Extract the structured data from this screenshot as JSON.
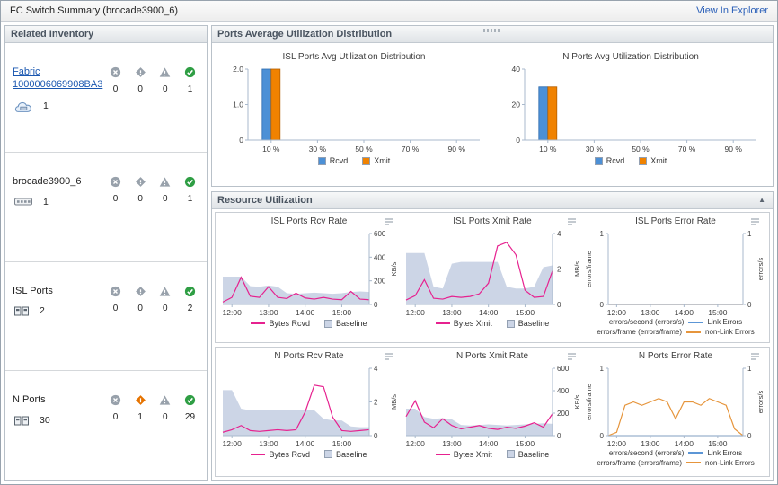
{
  "header": {
    "title": "FC Switch Summary (brocade3900_6)",
    "explorer_link": "View In Explorer"
  },
  "panels": {
    "ports": "Ports Average Utilization Distribution",
    "resource": "Resource Utilization"
  },
  "inventory": {
    "title": "Related Inventory",
    "rows": [
      {
        "label": "Fabric 1000006069908BA3",
        "count": "1",
        "statuses": [
          "0",
          "0",
          "0",
          "1"
        ]
      },
      {
        "label": "brocade3900_6",
        "count": "1",
        "statuses": [
          "0",
          "0",
          "0",
          "1"
        ]
      },
      {
        "label": "ISL Ports",
        "count": "2",
        "statuses": [
          "0",
          "0",
          "0",
          "2"
        ]
      },
      {
        "label": "N Ports",
        "count": "30",
        "statuses": [
          "0",
          "1",
          "0",
          "29"
        ]
      }
    ]
  },
  "chart_data": [
    {
      "type": "bar",
      "title": "ISL Ports Avg Utilization Distribution",
      "categories": [
        "10 %",
        "30 %",
        "50 %",
        "70 %",
        "90 %"
      ],
      "ylim": [
        0,
        2
      ],
      "yticks": [
        {
          "v": 0,
          "label": "0"
        },
        {
          "v": 1,
          "label": "1.0"
        },
        {
          "v": 2,
          "label": "2.0"
        }
      ],
      "series": [
        {
          "name": "Rcvd",
          "color": "#4c90d6",
          "border": "#2e6cae",
          "values": [
            2,
            0,
            0,
            0,
            0
          ]
        },
        {
          "name": "Xmit",
          "color": "#f08200",
          "border": "#b35f00",
          "values": [
            2,
            0,
            0,
            0,
            0
          ]
        }
      ],
      "legend": [
        {
          "label": "Rcvd",
          "swatch": "box",
          "color": "#4c90d6"
        },
        {
          "label": "Xmit",
          "swatch": "box",
          "color": "#f08200"
        }
      ]
    },
    {
      "type": "bar",
      "title": "N Ports Avg Utilization Distribution",
      "categories": [
        "10 %",
        "30 %",
        "50 %",
        "70 %",
        "90 %"
      ],
      "ylim": [
        0,
        40
      ],
      "yticks": [
        {
          "v": 0,
          "label": "0"
        },
        {
          "v": 20,
          "label": "20"
        },
        {
          "v": 40,
          "label": "40"
        }
      ],
      "series": [
        {
          "name": "Rcvd",
          "color": "#4c90d6",
          "border": "#2e6cae",
          "values": [
            30,
            0,
            0,
            0,
            0
          ]
        },
        {
          "name": "Xmit",
          "color": "#f08200",
          "border": "#b35f00",
          "values": [
            30,
            0,
            0,
            0,
            0
          ]
        }
      ],
      "legend": [
        {
          "label": "Rcvd",
          "swatch": "box",
          "color": "#4c90d6"
        },
        {
          "label": "Xmit",
          "swatch": "box",
          "color": "#f08200"
        }
      ]
    },
    {
      "type": "line",
      "title": "ISL Ports Rcv Rate",
      "x_ticks": [
        "12:00",
        "13:00",
        "14:00",
        "15:00"
      ],
      "y_axis": {
        "side": "right",
        "label": "KB/s",
        "min": 0,
        "max": 600,
        "ticks": [
          0,
          200,
          400,
          600
        ]
      },
      "series": [
        {
          "name": "Baseline",
          "kind": "area",
          "color": "#ccd5e6",
          "values": [
            235,
            235,
            235,
            155,
            150,
            160,
            150,
            95,
            90,
            95,
            100,
            95,
            90,
            95,
            105,
            110,
            105
          ]
        },
        {
          "name": "Bytes Rcvd",
          "kind": "line",
          "color": "#e6218f",
          "values": [
            20,
            60,
            230,
            70,
            60,
            150,
            60,
            50,
            95,
            55,
            45,
            60,
            45,
            40,
            110,
            45,
            40
          ]
        }
      ],
      "legend": [
        {
          "label": "Bytes Rcvd",
          "swatch": "line",
          "color": "#e6218f"
        },
        {
          "label": "Baseline",
          "swatch": "box",
          "color": "#ccd5e6"
        }
      ]
    },
    {
      "type": "line",
      "title": "ISL Ports Xmit Rate",
      "x_ticks": [
        "12:00",
        "13:00",
        "14:00",
        "15:00"
      ],
      "y_axis": {
        "side": "right",
        "label": "MB/s",
        "min": 0,
        "max": 4,
        "ticks": [
          0,
          2,
          4
        ]
      },
      "series": [
        {
          "name": "Baseline",
          "kind": "area",
          "color": "#ccd5e6",
          "values": [
            2.9,
            2.9,
            2.9,
            1.0,
            0.9,
            2.3,
            2.4,
            2.4,
            2.4,
            2.4,
            2.4,
            1.0,
            0.9,
            0.9,
            1.0,
            2.1,
            2.2
          ]
        },
        {
          "name": "Bytes Xmit",
          "kind": "line",
          "color": "#e6218f",
          "values": [
            0.25,
            0.5,
            1.4,
            0.35,
            0.3,
            0.45,
            0.4,
            0.45,
            0.6,
            1.2,
            3.3,
            3.5,
            2.8,
            0.8,
            0.4,
            0.45,
            1.9
          ]
        }
      ],
      "legend": [
        {
          "label": "Bytes Xmit",
          "swatch": "line",
          "color": "#e6218f"
        },
        {
          "label": "Baseline",
          "swatch": "box",
          "color": "#ccd5e6"
        }
      ]
    },
    {
      "type": "line",
      "title": "ISL Ports Error Rate",
      "x_ticks": [
        "12:00",
        "13:00",
        "14:00",
        "15:00"
      ],
      "y_left": {
        "label": "errors/frame",
        "min": 0,
        "max": 1,
        "ticks": [
          0,
          1
        ]
      },
      "y_right": {
        "label": "errors/s",
        "min": 0,
        "max": 1,
        "ticks": [
          0,
          1
        ]
      },
      "series": [
        {
          "name": "Link Errors",
          "kind": "line",
          "color": "#5c96d6",
          "values": [
            0,
            0,
            0,
            0,
            0,
            0,
            0,
            0,
            0,
            0,
            0,
            0,
            0,
            0,
            0,
            0,
            0
          ]
        },
        {
          "name": "non-Link Errors",
          "kind": "line",
          "color": "#e6953c",
          "values": [
            0,
            0,
            0,
            0,
            0,
            0,
            0,
            0,
            0,
            0,
            0,
            0,
            0,
            0,
            0,
            0,
            0
          ]
        }
      ],
      "legend2": [
        {
          "text": "errors/second (errors/s)",
          "color": "#5c96d6",
          "label": "Link Errors"
        },
        {
          "text": "errors/frame (errors/frame)",
          "color": "#e6953c",
          "label": "non-Link Errors"
        }
      ]
    },
    {
      "type": "line",
      "title": "N Ports Rcv Rate",
      "x_ticks": [
        "12:00",
        "13:00",
        "14:00",
        "15:00"
      ],
      "y_axis": {
        "side": "right",
        "label": "MB/s",
        "min": 0,
        "max": 4,
        "ticks": [
          0,
          2,
          4
        ]
      },
      "series": [
        {
          "name": "Baseline",
          "kind": "area",
          "color": "#ccd5e6",
          "values": [
            2.7,
            2.7,
            1.6,
            1.5,
            1.5,
            1.55,
            1.5,
            1.5,
            1.55,
            1.5,
            1.5,
            1.0,
            0.9,
            0.9,
            0.55,
            0.5,
            0.5
          ]
        },
        {
          "name": "Bytes Rcvd",
          "kind": "line",
          "color": "#e6218f",
          "values": [
            0.2,
            0.35,
            0.6,
            0.3,
            0.25,
            0.3,
            0.35,
            0.3,
            0.35,
            1.4,
            3.0,
            2.9,
            1.1,
            0.3,
            0.25,
            0.3,
            0.35
          ]
        }
      ],
      "legend": [
        {
          "label": "Bytes Rcvd",
          "swatch": "line",
          "color": "#e6218f"
        },
        {
          "label": "Baseline",
          "swatch": "box",
          "color": "#ccd5e6"
        }
      ]
    },
    {
      "type": "line",
      "title": "N Ports Xmit Rate",
      "x_ticks": [
        "12:00",
        "13:00",
        "14:00",
        "15:00"
      ],
      "y_axis": {
        "side": "right",
        "label": "KB/s",
        "min": 0,
        "max": 600,
        "ticks": [
          0,
          200,
          400,
          600
        ]
      },
      "series": [
        {
          "name": "Baseline",
          "kind": "area",
          "color": "#ccd5e6",
          "values": [
            240,
            240,
            165,
            150,
            155,
            145,
            95,
            90,
            95,
            100,
            95,
            90,
            95,
            100,
            105,
            110,
            105
          ]
        },
        {
          "name": "Bytes Xmit",
          "kind": "line",
          "color": "#e6218f",
          "values": [
            170,
            310,
            120,
            70,
            150,
            90,
            60,
            75,
            90,
            65,
            55,
            75,
            65,
            85,
            115,
            75,
            195
          ]
        }
      ],
      "legend": [
        {
          "label": "Bytes Xmit",
          "swatch": "line",
          "color": "#e6218f"
        },
        {
          "label": "Baseline",
          "swatch": "box",
          "color": "#ccd5e6"
        }
      ]
    },
    {
      "type": "line",
      "title": "N Ports Error Rate",
      "x_ticks": [
        "12:00",
        "13:00",
        "14:00",
        "15:00"
      ],
      "y_left": {
        "label": "errors/frame",
        "min": 0,
        "max": 1,
        "ticks": [
          0,
          1
        ]
      },
      "y_right": {
        "label": "errors/s",
        "min": 0,
        "max": 1,
        "ticks": [
          0,
          1
        ]
      },
      "series": [
        {
          "name": "Link Errors",
          "kind": "line",
          "color": "#5c96d6",
          "values": [
            0,
            0,
            0,
            0,
            0,
            0,
            0,
            0,
            0,
            0,
            0,
            0,
            0,
            0,
            0,
            0,
            0
          ]
        },
        {
          "name": "non-Link Errors",
          "kind": "line",
          "color": "#e6953c",
          "values": [
            0,
            0.05,
            0.45,
            0.5,
            0.45,
            0.5,
            0.55,
            0.5,
            0.25,
            0.5,
            0.5,
            0.45,
            0.55,
            0.5,
            0.45,
            0.1,
            0
          ]
        }
      ],
      "legend2": [
        {
          "text": "errors/second (errors/s)",
          "color": "#5c96d6",
          "label": "Link Errors"
        },
        {
          "text": "errors/frame (errors/frame)",
          "color": "#e6953c",
          "label": "non-Link Errors"
        }
      ]
    }
  ]
}
